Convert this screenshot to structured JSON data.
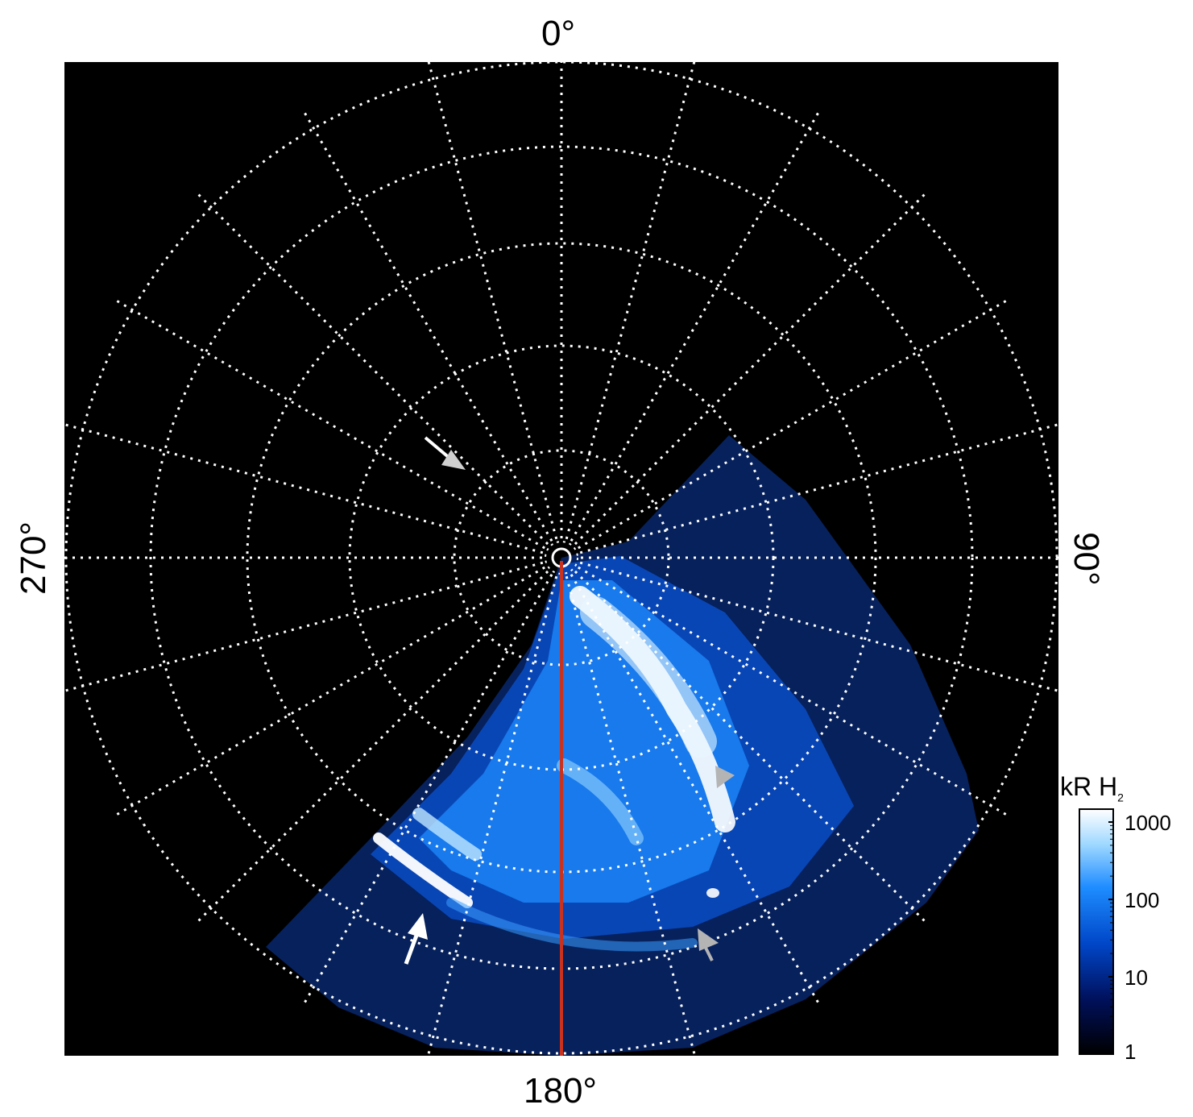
{
  "labels": {
    "top": "0°",
    "bottom": "180°",
    "left": "270°",
    "right": "90°"
  },
  "colorbar": {
    "title_main": "kR H",
    "title_sub": "2",
    "ticks": [
      "1000",
      "100",
      "10",
      "1"
    ],
    "colors": [
      "#000000",
      "#00105a",
      "#0046c8",
      "#1e8cff",
      "#9ad6ff",
      "#ffffff"
    ]
  },
  "colors": {
    "background": "#000000",
    "grid": "#ffffff",
    "meridian_line": "#c8321e",
    "arrow_white": "#ffffff",
    "arrow_gray": "#b4b4b4"
  }
}
